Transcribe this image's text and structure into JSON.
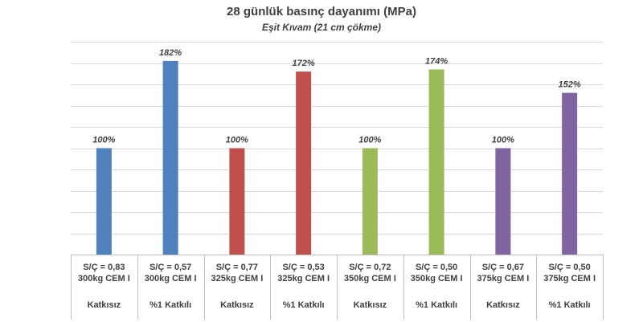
{
  "chart_data": {
    "type": "bar",
    "title": "28 günlük basınç dayanımı (MPa)",
    "subtitle": "Eşit Kıvam (21 cm çökme)",
    "categories": [
      [
        "S/Ç = 0,83",
        "300kg CEM I"
      ],
      [
        "S/Ç = 0,57",
        "300kg CEM I"
      ],
      [
        "S/Ç = 0,77",
        "325kg CEM I"
      ],
      [
        "S/Ç = 0,53",
        "325kg CEM I"
      ],
      [
        "S/Ç = 0,72",
        "350kg CEM I"
      ],
      [
        "S/Ç = 0,50",
        "350kg CEM I"
      ],
      [
        "S/Ç = 0,67",
        "375kg CEM I"
      ],
      [
        "S/Ç = 0,50",
        "375kg CEM I"
      ]
    ],
    "groups": [
      "Katkısız",
      "%1 Katkılı",
      "Katkısız",
      "%1 Katkılı",
      "Katkısız",
      "%1 Katkılı",
      "Katkısız",
      "%1 Katkılı"
    ],
    "values": [
      100,
      182,
      100,
      172,
      100,
      174,
      100,
      152
    ],
    "data_labels": [
      "100%",
      "182%",
      "100%",
      "172%",
      "100%",
      "174%",
      "100%",
      "152%"
    ],
    "colors": [
      "#4f81bd",
      "#4f81bd",
      "#c0504d",
      "#c0504d",
      "#9bbb59",
      "#9bbb59",
      "#8064a2",
      "#8064a2"
    ],
    "ylim": [
      0,
      200
    ],
    "y_grid_step": 20,
    "grid": true,
    "xlabel": "",
    "ylabel": ""
  }
}
